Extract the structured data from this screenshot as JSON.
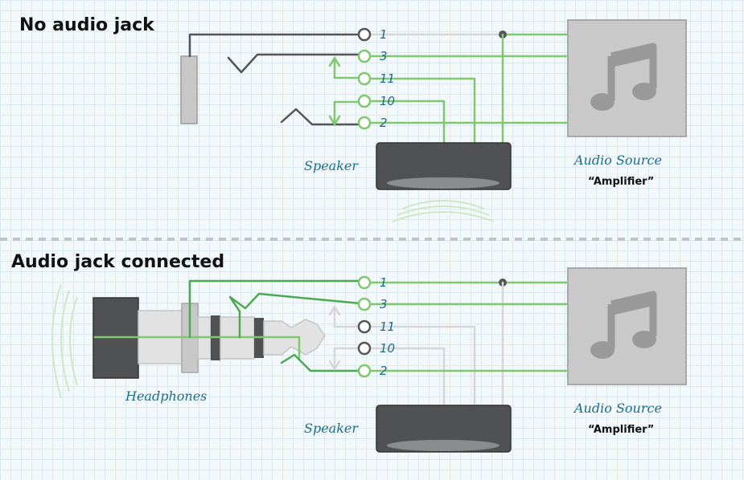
{
  "headings": {
    "top": "No audio jack",
    "bottom": "Audio jack connected"
  },
  "pins": {
    "top": [
      "1",
      "3",
      "11",
      "10",
      "2"
    ],
    "bottom": [
      "1",
      "3",
      "11",
      "10",
      "2"
    ]
  },
  "labels": {
    "speaker_top": "Speaker",
    "speaker_bottom": "Speaker",
    "headphones": "Headphones",
    "audio_source_top": "Audio Source",
    "audio_source_bottom": "Audio Source",
    "amplifier_top": "“Amplifier”",
    "amplifier_bottom": "“Amplifier”"
  },
  "icons": {
    "music": "music-note-icon"
  },
  "colors": {
    "wire_green": "#7fc870",
    "wire_dark_green": "#4caa52",
    "wire_grey": "#d6d6d6",
    "pin_text": "#1b6e8a",
    "speaker": "#4f5153",
    "source_box": "#c9c9c9"
  }
}
